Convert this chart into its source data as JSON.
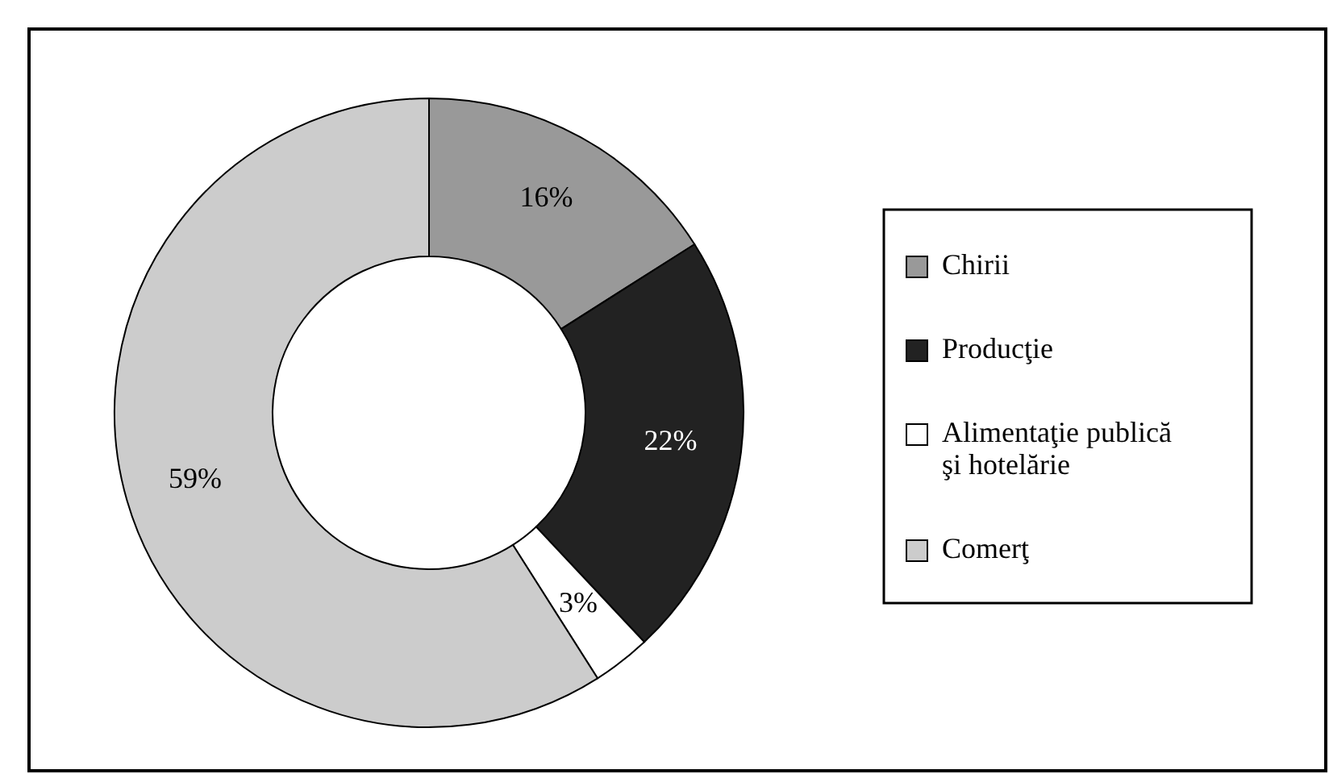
{
  "chart_data": {
    "type": "donut",
    "categories": [
      "Chirii",
      "Producţie",
      "Alimentaţie publică şi hotelărie",
      "Comerţ"
    ],
    "values": [
      16,
      22,
      3,
      59
    ],
    "colors": [
      "#999999",
      "#222222",
      "#ffffff",
      "#cccccc"
    ],
    "value_labels": [
      "16%",
      "22%",
      "3%",
      "59%"
    ],
    "legend": "right"
  }
}
